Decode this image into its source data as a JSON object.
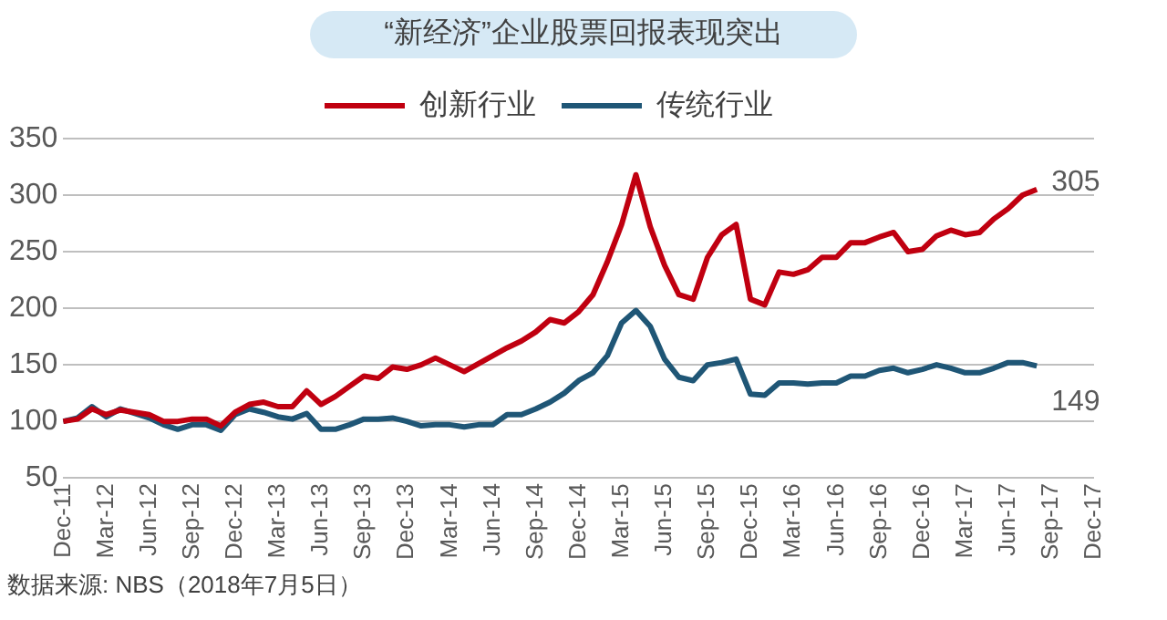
{
  "chart_data": {
    "type": "line",
    "title": "“新经济”企业股票回报表现突出",
    "categories": [
      "Dec-11",
      null,
      null,
      "Mar-12",
      null,
      null,
      "Jun-12",
      null,
      null,
      "Sep-12",
      null,
      null,
      "Dec-12",
      null,
      null,
      "Mar-13",
      null,
      null,
      "Jun-13",
      null,
      null,
      "Sep-13",
      null,
      null,
      "Dec-13",
      null,
      null,
      "Mar-14",
      null,
      null,
      "Jun-14",
      null,
      null,
      "Sep-14",
      null,
      null,
      "Dec-14",
      null,
      null,
      "Mar-15",
      null,
      null,
      "Jun-15",
      null,
      null,
      "Sep-15",
      null,
      null,
      "Dec-15",
      null,
      null,
      "Mar-16",
      null,
      null,
      "Jun-16",
      null,
      null,
      "Sep-16",
      null,
      null,
      "Dec-16",
      null,
      null,
      "Mar-17",
      null,
      null,
      "Jun-17",
      null,
      null,
      "Sep-17",
      null,
      null,
      "Dec-17"
    ],
    "series": [
      {
        "name": "创新行业",
        "color": "#c00010",
        "values": [
          100,
          102,
          111,
          106,
          110,
          108,
          106,
          100,
          100,
          102,
          102,
          96,
          108,
          115,
          117,
          113,
          113,
          127,
          115,
          122,
          131,
          140,
          138,
          148,
          146,
          150,
          156,
          150,
          144,
          151,
          158,
          165,
          171,
          179,
          190,
          187,
          197,
          212,
          241,
          274,
          318,
          272,
          238,
          212,
          208,
          245,
          265,
          274,
          208,
          203,
          232,
          230,
          234,
          245,
          245,
          258,
          258,
          263,
          267,
          250,
          252,
          264,
          269,
          265,
          267,
          279,
          288,
          300,
          305,
          null,
          null,
          null,
          null
        ],
        "value_labels": [
          null,
          null,
          null,
          null,
          null,
          null,
          null,
          null,
          null,
          null,
          null,
          null,
          null,
          null,
          null,
          null,
          null,
          null,
          null,
          null,
          null,
          null,
          null,
          null,
          null,
          null,
          null,
          null,
          null,
          null,
          null,
          null,
          null,
          null,
          null,
          null,
          null,
          null,
          null,
          null,
          null,
          null,
          null,
          null,
          null,
          null,
          null,
          null,
          null,
          null,
          null,
          null,
          null,
          null,
          null,
          null,
          null,
          null,
          null,
          null,
          null,
          null,
          null,
          null,
          null,
          null,
          null,
          null,
          "305",
          null,
          null,
          null,
          null
        ]
      },
      {
        "name": "传统行业",
        "color": "#1f5676",
        "values": [
          100,
          103,
          113,
          104,
          111,
          107,
          103,
          97,
          93,
          97,
          97,
          92,
          106,
          111,
          108,
          104,
          102,
          107,
          93,
          93,
          97,
          102,
          102,
          103,
          100,
          96,
          97,
          97,
          95,
          97,
          97,
          106,
          106,
          111,
          117,
          125,
          136,
          143,
          158,
          187,
          198,
          184,
          155,
          139,
          136,
          150,
          152,
          155,
          124,
          123,
          134,
          134,
          133,
          134,
          134,
          140,
          140,
          145,
          147,
          143,
          146,
          150,
          147,
          143,
          143,
          147,
          152,
          152,
          149,
          null,
          null,
          null,
          null
        ],
        "value_labels": [
          null,
          null,
          null,
          null,
          null,
          null,
          null,
          null,
          null,
          null,
          null,
          null,
          null,
          null,
          null,
          null,
          null,
          null,
          null,
          null,
          null,
          null,
          null,
          null,
          null,
          null,
          null,
          null,
          null,
          null,
          null,
          null,
          null,
          null,
          null,
          null,
          null,
          null,
          null,
          null,
          null,
          null,
          null,
          null,
          null,
          null,
          null,
          null,
          null,
          null,
          null,
          null,
          null,
          null,
          null,
          null,
          null,
          null,
          null,
          null,
          null,
          null,
          null,
          null,
          null,
          null,
          null,
          null,
          "149",
          null,
          null,
          null,
          null
        ]
      }
    ],
    "ylim": [
      50,
      350
    ],
    "yticks": [
      50,
      100,
      150,
      200,
      250,
      300,
      350
    ],
    "grid": "y",
    "legend": "top",
    "marker": "none",
    "line_style": "solid",
    "annotations": [
      "数据来源: NBS（2018年7月5日）"
    ]
  }
}
